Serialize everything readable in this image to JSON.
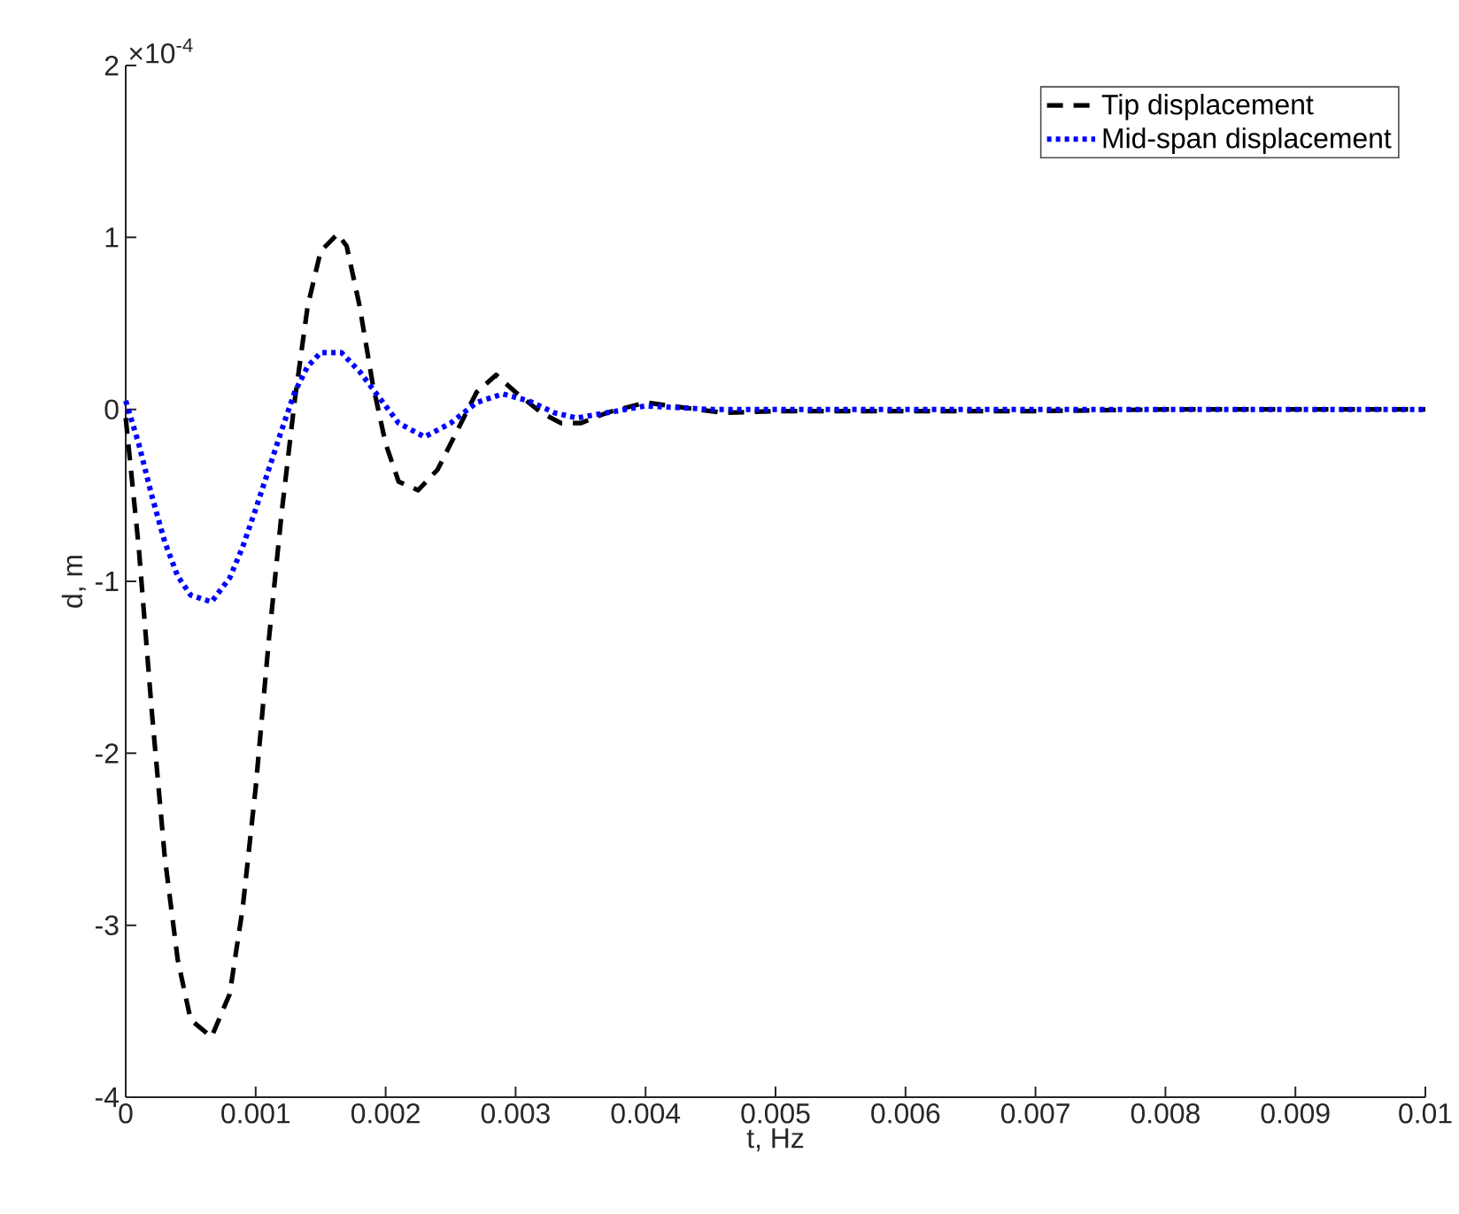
{
  "chart_data": {
    "type": "line",
    "xlabel": "t, Hz",
    "ylabel": "d, m",
    "annotations": [
      "×10$^{-4}$"
    ],
    "xlim": [
      0,
      0.01
    ],
    "ylim": [
      -4,
      2
    ],
    "xticks": [
      0,
      0.001,
      0.002,
      0.003,
      0.004,
      0.005,
      0.006,
      0.007,
      0.008,
      0.009,
      0.01
    ],
    "yticks": [
      -4,
      -3,
      -2,
      -1,
      0,
      1,
      2
    ],
    "grid": false,
    "legend": "top right",
    "marker": "none",
    "series": [
      {
        "name": "Tip displacement",
        "color": "#000000",
        "line_style": "dashed",
        "x": [
          0,
          0.0001,
          0.0002,
          0.0003,
          0.0004,
          0.0005,
          0.00066,
          0.0008,
          0.0009,
          0.001,
          0.0011,
          0.0012,
          0.0013,
          0.0014,
          0.0015,
          0.00163,
          0.0017,
          0.0018,
          0.0019,
          0.002,
          0.0021,
          0.00225,
          0.0024,
          0.0026,
          0.0027,
          0.00285,
          0.003,
          0.0032,
          0.00335,
          0.0035,
          0.0037,
          0.004,
          0.0043,
          0.0046,
          0.005,
          0.006,
          0.007,
          0.008,
          0.009,
          0.01
        ],
        "values": [
          -0.05,
          -0.8,
          -1.75,
          -2.6,
          -3.2,
          -3.55,
          -3.65,
          -3.4,
          -2.9,
          -2.2,
          -1.35,
          -0.6,
          0.05,
          0.6,
          0.92,
          1.02,
          0.95,
          0.6,
          0.15,
          -0.2,
          -0.42,
          -0.47,
          -0.35,
          -0.05,
          0.1,
          0.2,
          0.1,
          -0.02,
          -0.08,
          -0.08,
          -0.02,
          0.04,
          0.01,
          -0.02,
          -0.01,
          -0.01,
          -0.01,
          0,
          0,
          0
        ]
      },
      {
        "name": "Mid-span displacement",
        "color": "#0000ff",
        "line_style": "dotted",
        "x": [
          0,
          0.0001,
          0.0002,
          0.0003,
          0.0004,
          0.0005,
          0.00066,
          0.0008,
          0.0009,
          0.001,
          0.0011,
          0.0012,
          0.0013,
          0.0014,
          0.0015,
          0.00166,
          0.0018,
          0.002,
          0.0021,
          0.0023,
          0.0025,
          0.0027,
          0.0029,
          0.0031,
          0.0033,
          0.00347,
          0.0037,
          0.004,
          0.0045,
          0.005,
          0.01
        ],
        "values": [
          0.05,
          -0.2,
          -0.5,
          -0.77,
          -0.97,
          -1.08,
          -1.12,
          -0.98,
          -0.8,
          -0.58,
          -0.35,
          -0.12,
          0.1,
          0.25,
          0.33,
          0.33,
          0.22,
          0.02,
          -0.08,
          -0.16,
          -0.08,
          0.04,
          0.09,
          0.05,
          -0.02,
          -0.05,
          -0.02,
          0.02,
          0,
          0,
          0
        ]
      }
    ]
  }
}
